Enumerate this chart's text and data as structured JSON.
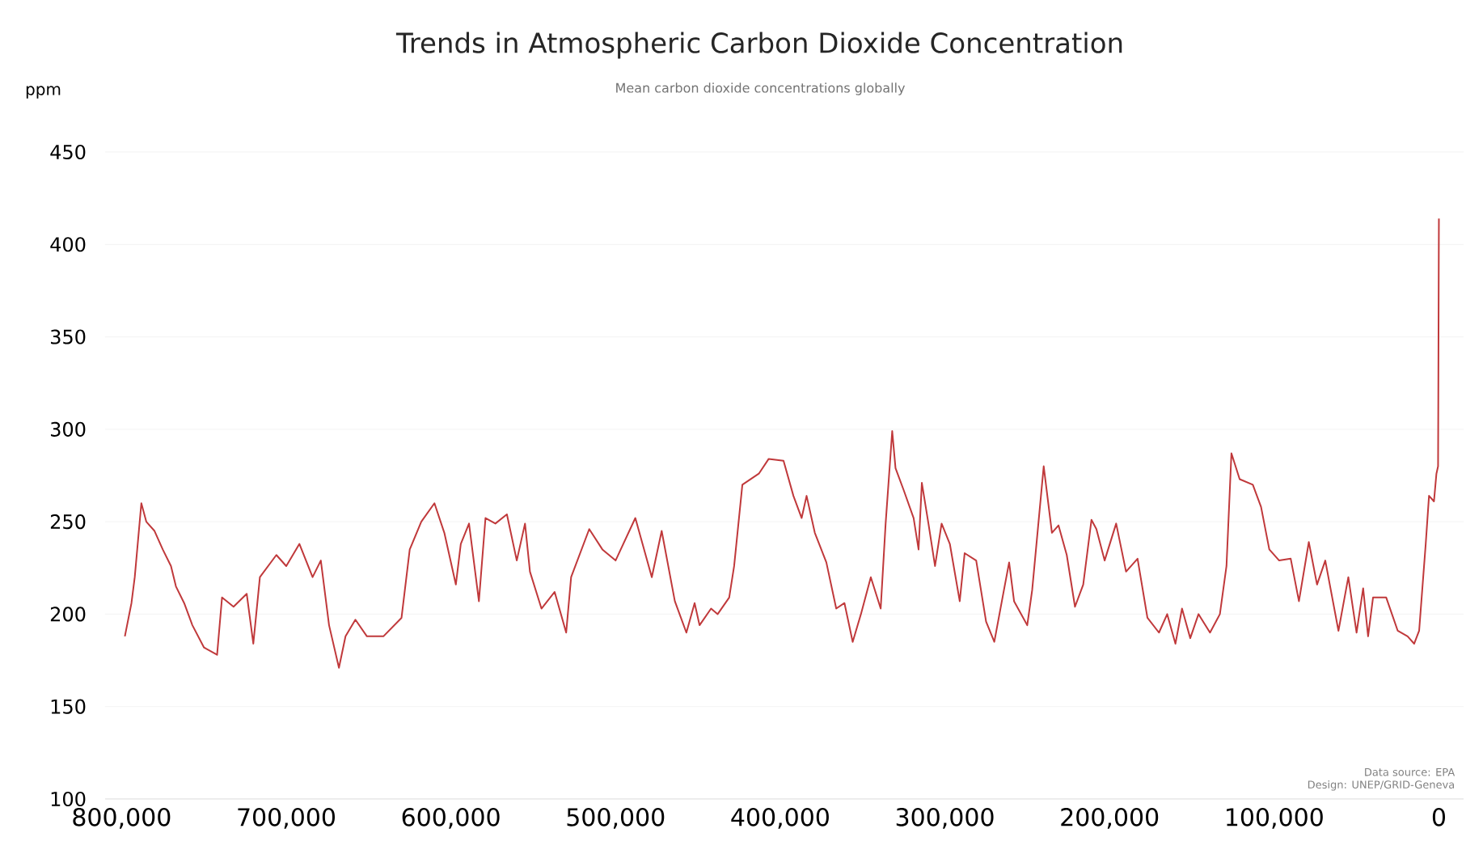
{
  "chart_data": {
    "type": "line",
    "title": "Trends in Atmospheric Carbon Dioxide Concentration",
    "subtitle": "Mean carbon dioxide concentrations globally",
    "ylabel": "ppm",
    "annotations": [
      "Data source: EPA",
      "Design: UNEP/GRID-Geneva"
    ],
    "x": [
      798000,
      794000,
      792000,
      788000,
      785000,
      780000,
      775000,
      770000,
      767000,
      762000,
      757000,
      750000,
      742000,
      739000,
      732000,
      724000,
      720000,
      716000,
      706000,
      700000,
      692000,
      684000,
      679000,
      674000,
      668000,
      664000,
      658000,
      651000,
      641000,
      630000,
      625000,
      618000,
      610000,
      604000,
      597000,
      594000,
      589000,
      583000,
      579000,
      573000,
      566000,
      560000,
      555000,
      552000,
      545000,
      537000,
      530000,
      527000,
      516000,
      508000,
      500000,
      488000,
      478000,
      472000,
      464000,
      457000,
      452000,
      449000,
      442000,
      438000,
      431000,
      428000,
      423000,
      413000,
      407000,
      398000,
      392000,
      387000,
      384000,
      379000,
      372000,
      366000,
      361000,
      356000,
      351000,
      345000,
      339000,
      336000,
      332000,
      330000,
      325000,
      319000,
      316000,
      314000,
      310000,
      306000,
      302000,
      297000,
      291000,
      288000,
      281000,
      275000,
      270000,
      265000,
      261000,
      258000,
      250000,
      247000,
      240000,
      235000,
      231000,
      226000,
      221000,
      216000,
      211000,
      208000,
      203000,
      196000,
      190000,
      183000,
      177000,
      170000,
      165000,
      160000,
      156000,
      151000,
      146000,
      139000,
      133000,
      129000,
      126000,
      121000,
      113000,
      108000,
      103000,
      97000,
      90000,
      85000,
      79000,
      74000,
      69000,
      61000,
      55000,
      50000,
      46000,
      43000,
      40000,
      32000,
      25000,
      19000,
      15000,
      12000,
      8000,
      6000,
      3000,
      1500,
      500,
      0
    ],
    "values": [
      188,
      206,
      220,
      260,
      250,
      245,
      235,
      226,
      215,
      206,
      194,
      182,
      178,
      209,
      204,
      211,
      184,
      220,
      232,
      226,
      238,
      220,
      229,
      194,
      171,
      188,
      197,
      188,
      188,
      198,
      235,
      250,
      260,
      244,
      216,
      238,
      249,
      207,
      252,
      249,
      254,
      229,
      249,
      223,
      203,
      212,
      190,
      220,
      246,
      235,
      229,
      252,
      220,
      245,
      207,
      190,
      206,
      194,
      203,
      200,
      209,
      226,
      270,
      276,
      284,
      283,
      264,
      252,
      264,
      244,
      228,
      203,
      206,
      185,
      200,
      220,
      203,
      249,
      299,
      279,
      267,
      252,
      235,
      271,
      249,
      226,
      249,
      238,
      207,
      233,
      229,
      196,
      185,
      209,
      228,
      207,
      194,
      213,
      280,
      244,
      248,
      232,
      204,
      216,
      251,
      246,
      229,
      249,
      223,
      230,
      198,
      190,
      200,
      184,
      203,
      187,
      200,
      190,
      200,
      226,
      287,
      273,
      270,
      258,
      235,
      229,
      230,
      207,
      239,
      216,
      229,
      191,
      220,
      190,
      214,
      188,
      209,
      209,
      191,
      188,
      184,
      191,
      238,
      264,
      261,
      276,
      280,
      414
    ],
    "color": "#c0393b",
    "xlim": [
      810000,
      -15000
    ],
    "ylim": [
      100,
      450
    ],
    "xticks": [
      {
        "value": 800000,
        "label": "800,000"
      },
      {
        "value": 700000,
        "label": "700,000"
      },
      {
        "value": 600000,
        "label": "600,000"
      },
      {
        "value": 500000,
        "label": "500,000"
      },
      {
        "value": 400000,
        "label": "400,000"
      },
      {
        "value": 300000,
        "label": "300,000"
      },
      {
        "value": 200000,
        "label": "200,000"
      },
      {
        "value": 100000,
        "label": "100,000"
      },
      0
    ],
    "yticks": [
      100,
      150,
      200,
      250,
      300,
      350,
      400,
      450
    ],
    "grid": "y"
  }
}
